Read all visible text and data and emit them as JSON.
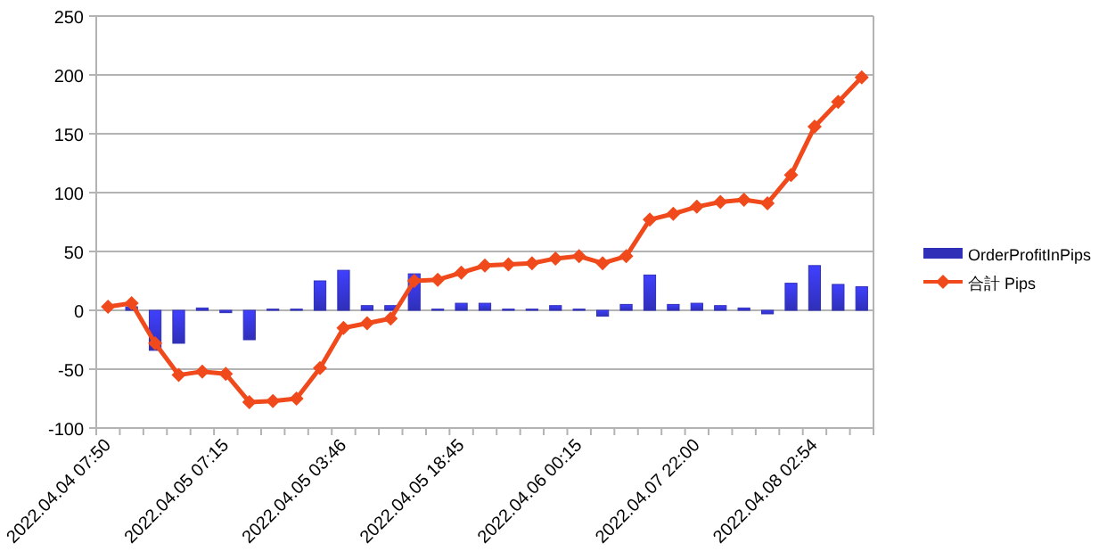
{
  "chart_data": {
    "type": "bar",
    "categories": [
      "2022.04.04 07:50",
      null,
      null,
      null,
      null,
      "2022.04.05 07:15",
      null,
      null,
      null,
      null,
      "2022.04.05 03:46",
      null,
      null,
      null,
      null,
      "2022.04.05 18:45",
      null,
      null,
      null,
      null,
      "2022.04.06 00:15",
      null,
      null,
      null,
      null,
      "2022.04.07 22:00",
      null,
      null,
      null,
      null,
      "2022.04.08 02:54",
      null,
      null
    ],
    "series": [
      {
        "name": "OrderProfitInPips",
        "color": "#2f2fb8",
        "values": [
          null,
          3,
          -34,
          -28,
          2,
          -2,
          -25,
          1,
          1,
          25,
          34,
          4,
          4,
          31,
          1,
          6,
          6,
          1,
          1,
          4,
          1,
          -5,
          5,
          30,
          5,
          6,
          4,
          2,
          -3,
          23,
          38,
          22,
          20
        ]
      },
      {
        "name": "合計 Pips",
        "type": "line",
        "color": "#f04a1c",
        "marker": "diamond",
        "values": [
          3,
          6,
          -28,
          -55,
          -52,
          -54,
          -78,
          -77,
          -75,
          -49,
          -15,
          -11,
          -7,
          25,
          26,
          32,
          38,
          39,
          40,
          44,
          46,
          40,
          46,
          77,
          82,
          88,
          92,
          94,
          91,
          115,
          156,
          177,
          198
        ]
      }
    ],
    "ylim": [
      -100,
      250
    ],
    "yticks": [
      -100,
      -50,
      0,
      50,
      100,
      150,
      200,
      250
    ],
    "grid": "y",
    "legend": "right"
  }
}
